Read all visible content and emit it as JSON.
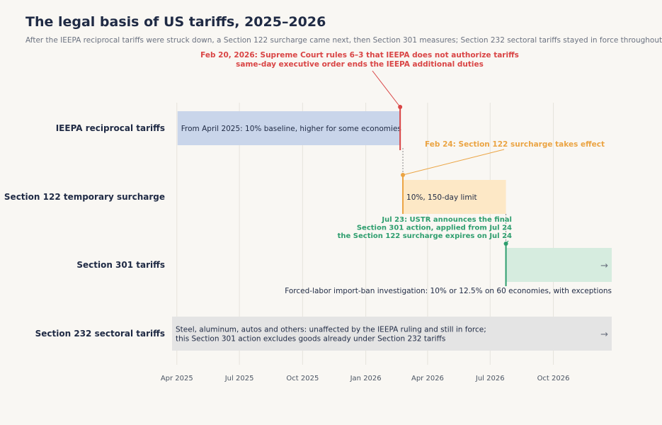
{
  "title": "The legal basis of US tariffs, 2025–2026",
  "subtitle": "After the IEEPA reciprocal tariffs were struck down, a Section 122 surcharge came next, then Section 301 measures; Section 232 sectoral tariffs stayed in force throughout",
  "chart_data": {
    "type": "timeline",
    "x_range": [
      "2025-03-25",
      "2026-12-25"
    ],
    "x_ticks": [
      {
        "date": "2025-04-01",
        "label": "Apr 2025"
      },
      {
        "date": "2025-07-01",
        "label": "Jul 2025"
      },
      {
        "date": "2025-10-01",
        "label": "Oct 2025"
      },
      {
        "date": "2026-01-01",
        "label": "Jan 2026"
      },
      {
        "date": "2026-04-01",
        "label": "Apr 2026"
      },
      {
        "date": "2026-07-01",
        "label": "Jul 2026"
      },
      {
        "date": "2026-10-01",
        "label": "Oct 2026"
      }
    ],
    "rows": [
      {
        "label": "IEEPA reciprocal tariffs",
        "start": "2025-04-02",
        "end": "2026-02-20",
        "color": "#c9d5ea",
        "ongoing": false,
        "text": [
          "From April 2025: 10% baseline, higher for some economies"
        ],
        "text_position": "inside"
      },
      {
        "label": "Section 122 temporary surcharge",
        "start": "2026-02-24",
        "end": "2026-07-24",
        "color": "#fde8c6",
        "ongoing": false,
        "text": [
          "10%, 150-day limit"
        ],
        "text_position": "inside"
      },
      {
        "label": "Section 301 tariffs",
        "start": "2026-07-24",
        "end": "2026-12-25",
        "color": "#d6ecdf",
        "ongoing": true,
        "text": [
          "Forced-labor import-ban investigation: 10% or 12.5% on 60 economies, with exceptions"
        ],
        "text_position": "below"
      },
      {
        "label": "Section 232 sectoral tariffs",
        "start": "2025-03-25",
        "end": "2026-12-25",
        "color": "#e4e4e4",
        "ongoing": true,
        "text": [
          "Steel, aluminum, autos and others: unaffected by the IEEPA ruling and still in force;",
          "this Section 301 action excludes goods already under Section 232 tariffs"
        ],
        "text_position": "inside"
      }
    ],
    "events": [
      {
        "date": "2026-02-20",
        "row": 0,
        "color": "#d94545",
        "lines": [
          "Feb 20, 2026: Supreme Court rules 6–3 that IEEPA does not authorize tariffs",
          "same-day executive order ends the IEEPA additional duties"
        ]
      },
      {
        "date": "2026-02-24",
        "row": 1,
        "color": "#eba443",
        "lines": [
          "Feb 24: Section 122 surcharge takes effect"
        ]
      },
      {
        "date": "2026-07-24",
        "row": 2,
        "color": "#2e9e6e",
        "lines": [
          "Jul 23: USTR announces the final",
          "Section 301 action, applied from Jul 24",
          "the Section 122 surcharge expires on Jul 24"
        ]
      }
    ],
    "ongoing_marker": "→"
  }
}
